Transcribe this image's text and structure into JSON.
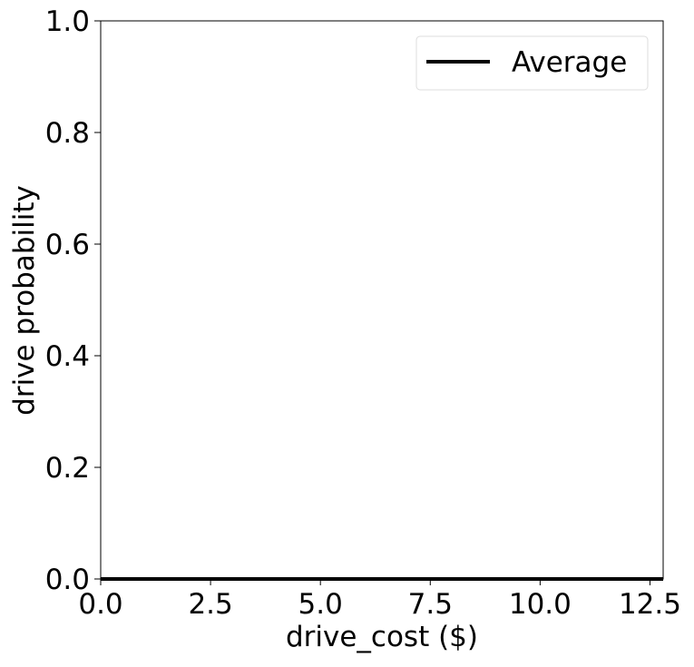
{
  "chart_data": {
    "type": "line",
    "xlabel": "drive_cost ($)",
    "ylabel": "drive probability",
    "xlim": [
      0,
      12.8
    ],
    "ylim": [
      0,
      1
    ],
    "x_ticks": [
      0,
      2.5,
      5,
      7.5,
      10,
      12.5
    ],
    "y_ticks": [
      0,
      0.2,
      0.4,
      0.6,
      0.8,
      1.0
    ],
    "x_tick_labels": [
      "0.0",
      "2.5",
      "5.0",
      "7.5",
      "10.0",
      "12.5"
    ],
    "y_tick_labels": [
      "0.0",
      "0.2",
      "0.4",
      "0.6",
      "0.8",
      "1.0"
    ],
    "grid": false,
    "legend_position": "top-right",
    "series": [
      {
        "name": "Average",
        "color": "#000000",
        "x": [
          0,
          12.8
        ],
        "y": [
          0,
          0
        ]
      }
    ]
  }
}
